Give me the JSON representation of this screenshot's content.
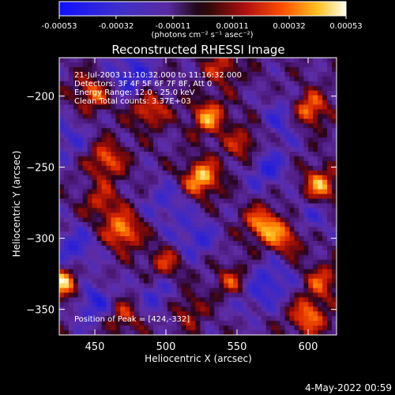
{
  "colorbar": {
    "ticks": [
      "-0.00053",
      "-0.00032",
      "-0.00011",
      "0.00011",
      "0.00032",
      "0.00053"
    ],
    "tick_values": [
      -0.00053,
      -0.00032,
      -0.00011,
      0.00011,
      0.00032,
      0.00053
    ],
    "units_label": "(photons cm⁻² s⁻¹ asec⁻²)"
  },
  "chart_data": {
    "type": "heatmap",
    "title": "Reconstructed RHESSI Image",
    "xlabel": "Heliocentric X (arcsec)",
    "ylabel": "Heliocentric Y (arcsec)",
    "xlim": [
      425,
      620
    ],
    "ylim": [
      -368,
      -173
    ],
    "x_ticks": [
      450,
      500,
      550,
      600
    ],
    "y_ticks": [
      -200,
      -250,
      -300,
      -350
    ],
    "annotations": [
      "21-Jul-2003 11:10:32.000 to 11:16:32.000",
      "Detectors: 3F 4F 5F 6F 7F 8F, Att 0",
      "Energy Range: 12.0 - 25.0 keV",
      "Clean     Total counts: 3.37E+03"
    ],
    "peak_label": "Position of Peak = [424,-332]",
    "color_range": [
      -0.00053,
      0.00053
    ],
    "hotspots": [
      {
        "x": 600,
        "y": -210,
        "intensity": 0.95
      },
      {
        "x": 525,
        "y": -258,
        "intensity": 1.0
      },
      {
        "x": 428,
        "y": -332,
        "intensity": 1.0
      },
      {
        "x": 470,
        "y": -295,
        "intensity": 0.9
      },
      {
        "x": 458,
        "y": -245,
        "intensity": 0.75
      },
      {
        "x": 530,
        "y": -215,
        "intensity": 0.8
      },
      {
        "x": 488,
        "y": -210,
        "intensity": 0.7
      },
      {
        "x": 568,
        "y": -290,
        "intensity": 0.85
      },
      {
        "x": 608,
        "y": -263,
        "intensity": 0.85
      },
      {
        "x": 600,
        "y": -355,
        "intensity": 0.8
      },
      {
        "x": 548,
        "y": -332,
        "intensity": 0.75
      },
      {
        "x": 448,
        "y": -198,
        "intensity": 0.7
      },
      {
        "x": 500,
        "y": -318,
        "intensity": 0.6
      },
      {
        "x": 585,
        "y": -300,
        "intensity": 0.7
      },
      {
        "x": 555,
        "y": -235,
        "intensity": 0.6
      },
      {
        "x": 470,
        "y": -355,
        "intensity": 0.55
      },
      {
        "x": 610,
        "y": -330,
        "intensity": 0.6
      },
      {
        "x": 540,
        "y": -180,
        "intensity": 0.55
      },
      {
        "x": 455,
        "y": -275,
        "intensity": 0.55
      },
      {
        "x": 515,
        "y": -350,
        "intensity": 0.5
      }
    ],
    "coldspots": [
      {
        "x": 475,
        "y": -185,
        "intensity": -0.6
      },
      {
        "x": 570,
        "y": -250,
        "intensity": -0.55
      },
      {
        "x": 585,
        "y": -215,
        "intensity": -0.5
      },
      {
        "x": 435,
        "y": -308,
        "intensity": -0.55
      },
      {
        "x": 448,
        "y": -345,
        "intensity": -0.6
      },
      {
        "x": 520,
        "y": -300,
        "intensity": -0.5
      },
      {
        "x": 555,
        "y": -340,
        "intensity": -0.45
      },
      {
        "x": 575,
        "y": -330,
        "intensity": -0.5
      },
      {
        "x": 500,
        "y": -275,
        "intensity": -0.4
      },
      {
        "x": 495,
        "y": -340,
        "intensity": -0.45
      },
      {
        "x": 600,
        "y": -285,
        "intensity": -0.4
      },
      {
        "x": 430,
        "y": -230,
        "intensity": -0.4
      }
    ],
    "grid": false
  },
  "footer": {
    "timestamp": "4-May-2022 00:59"
  }
}
